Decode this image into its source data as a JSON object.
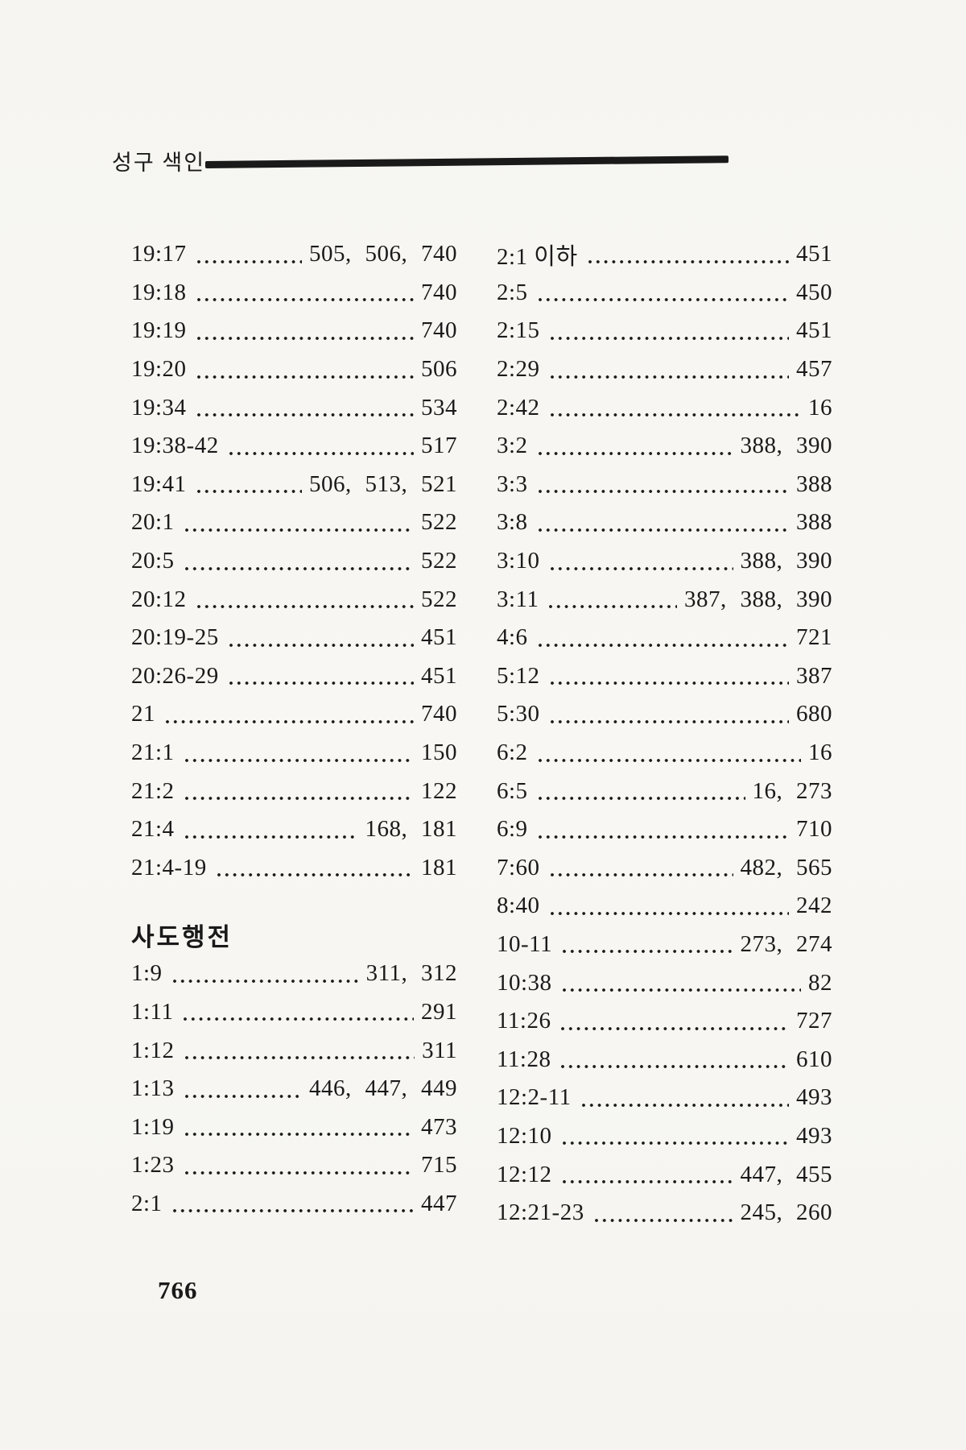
{
  "header": {
    "title": "성구 색인"
  },
  "footer": {
    "page_number": "766"
  },
  "colors": {
    "ink": "#1a1a1a",
    "paper": "#f7f6f2"
  },
  "index": {
    "left_column": [
      {
        "ref": "19:17",
        "pages": "505, 506, 740"
      },
      {
        "ref": "19:18",
        "pages": "740"
      },
      {
        "ref": "19:19",
        "pages": "740"
      },
      {
        "ref": "19:20",
        "pages": "506"
      },
      {
        "ref": "19:34",
        "pages": "534"
      },
      {
        "ref": "19:38-42",
        "pages": "517"
      },
      {
        "ref": "19:41",
        "pages": "506, 513, 521"
      },
      {
        "ref": "20:1",
        "pages": "522"
      },
      {
        "ref": "20:5",
        "pages": "522"
      },
      {
        "ref": "20:12",
        "pages": "522"
      },
      {
        "ref": "20:19-25",
        "pages": "451"
      },
      {
        "ref": "20:26-29",
        "pages": "451"
      },
      {
        "ref": "21",
        "pages": "740"
      },
      {
        "ref": "21:1",
        "pages": "150"
      },
      {
        "ref": "21:2",
        "pages": "122"
      },
      {
        "ref": "21:4",
        "pages": "168, 181"
      },
      {
        "ref": "21:4-19",
        "pages": "181"
      },
      {
        "heading": "사도행전"
      },
      {
        "ref": "1:9",
        "pages": "311, 312"
      },
      {
        "ref": "1:11",
        "pages": "291"
      },
      {
        "ref": "1:12",
        "pages": "311"
      },
      {
        "ref": "1:13",
        "pages": "446, 447, 449"
      },
      {
        "ref": "1:19",
        "pages": "473"
      },
      {
        "ref": "1:23",
        "pages": "715"
      },
      {
        "ref": "2:1",
        "pages": "447"
      }
    ],
    "right_column": [
      {
        "ref": "2:1 이하",
        "pages": "451"
      },
      {
        "ref": "2:5",
        "pages": "450"
      },
      {
        "ref": "2:15",
        "pages": "451"
      },
      {
        "ref": "2:29",
        "pages": "457"
      },
      {
        "ref": "2:42",
        "pages": "16"
      },
      {
        "ref": "3:2",
        "pages": "388, 390"
      },
      {
        "ref": "3:3",
        "pages": "388"
      },
      {
        "ref": "3:8",
        "pages": "388"
      },
      {
        "ref": "3:10",
        "pages": "388, 390"
      },
      {
        "ref": "3:11",
        "pages": "387, 388, 390"
      },
      {
        "ref": "4:6",
        "pages": "721"
      },
      {
        "ref": "5:12",
        "pages": "387"
      },
      {
        "ref": "5:30",
        "pages": "680"
      },
      {
        "ref": "6:2",
        "pages": "16"
      },
      {
        "ref": "6:5",
        "pages": "16, 273"
      },
      {
        "ref": "6:9",
        "pages": "710"
      },
      {
        "ref": "7:60",
        "pages": "482, 565"
      },
      {
        "ref": "8:40",
        "pages": "242"
      },
      {
        "ref": "10-11",
        "pages": "273, 274"
      },
      {
        "ref": "10:38",
        "pages": "82"
      },
      {
        "ref": "11:26",
        "pages": "727"
      },
      {
        "ref": "11:28",
        "pages": "610"
      },
      {
        "ref": "12:2-11",
        "pages": "493"
      },
      {
        "ref": "12:10",
        "pages": "493"
      },
      {
        "ref": "12:12",
        "pages": "447, 455"
      },
      {
        "ref": "12:21-23",
        "pages": "245, 260"
      }
    ]
  }
}
